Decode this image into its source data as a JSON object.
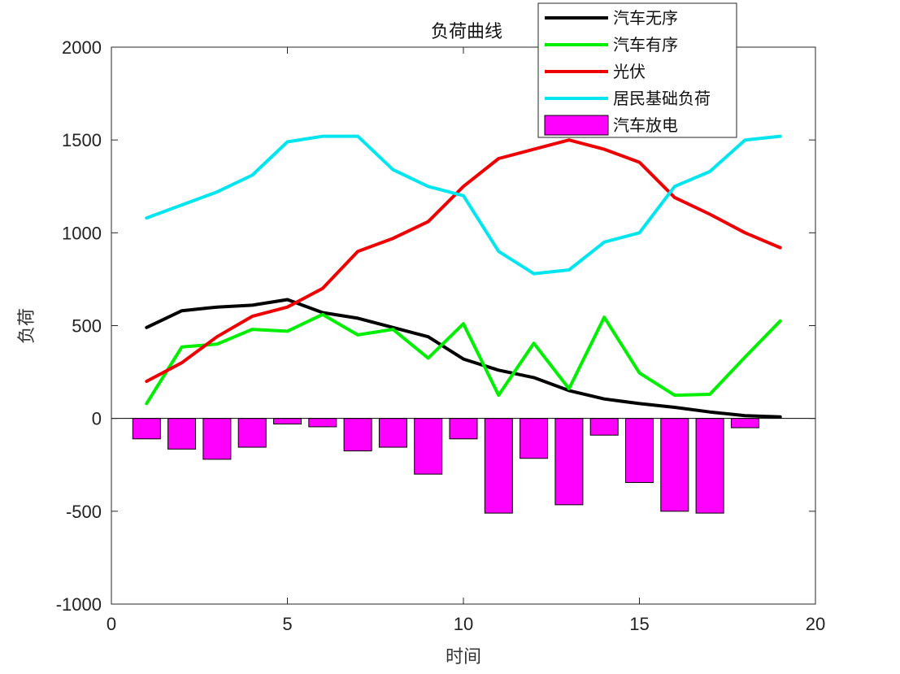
{
  "chart_data": {
    "type": "bar",
    "title": "负荷曲线",
    "xlabel": "时间",
    "ylabel": "负荷",
    "xlim": [
      0,
      20
    ],
    "ylim": [
      -1000,
      2000
    ],
    "xticks": [
      0,
      5,
      10,
      15,
      20
    ],
    "yticks": [
      -1000,
      -500,
      0,
      500,
      1000,
      1500,
      2000
    ],
    "grid": false,
    "legend_position": "top-right",
    "x": [
      1,
      2,
      3,
      4,
      5,
      6,
      7,
      8,
      9,
      10,
      11,
      12,
      13,
      14,
      15,
      16,
      17,
      18,
      19
    ],
    "series": [
      {
        "name": "汽车无序",
        "type": "line",
        "color": "#000000",
        "values": [
          490,
          580,
          600,
          610,
          640,
          570,
          540,
          490,
          440,
          320,
          260,
          220,
          150,
          105,
          80,
          60,
          35,
          15,
          8
        ]
      },
      {
        "name": "汽车有序",
        "type": "line",
        "color": "#00ee00",
        "values": [
          80,
          385,
          400,
          480,
          470,
          560,
          450,
          480,
          325,
          510,
          125,
          405,
          160,
          545,
          245,
          125,
          130,
          330,
          525
        ]
      },
      {
        "name": "光伏",
        "type": "line",
        "color": "#ee0000",
        "values": [
          200,
          300,
          440,
          550,
          600,
          700,
          900,
          970,
          1060,
          1250,
          1400,
          1450,
          1500,
          1450,
          1380,
          1190,
          1100,
          1000,
          920
        ]
      },
      {
        "name": "居民基础负荷",
        "type": "line",
        "color": "#00e5ee",
        "values": [
          1080,
          1150,
          1220,
          1310,
          1490,
          1520,
          1520,
          1340,
          1250,
          1200,
          900,
          780,
          800,
          950,
          1000,
          1250,
          1330,
          1500,
          1520
        ]
      },
      {
        "name": "汽车放电",
        "type": "bar",
        "color": "#ff00ff",
        "values": [
          -110,
          -165,
          -220,
          -155,
          -30,
          -45,
          -175,
          -155,
          -300,
          -110,
          -510,
          -215,
          -465,
          -90,
          -345,
          -500,
          -510,
          -50,
          0
        ]
      }
    ]
  }
}
